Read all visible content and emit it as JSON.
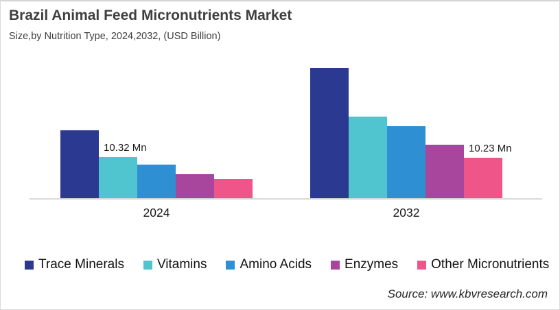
{
  "header": {
    "title": "Brazil Animal Feed Micronutrients Market",
    "subtitle": "Size,by Nutrition Type, 2024,2032, (USD Billion)"
  },
  "source": "Source: www.kbvresearch.com",
  "colors": {
    "trace_minerals": "#2b3990",
    "vitamins": "#50c4cf",
    "amino_acids": "#2e90d2",
    "enzymes": "#a8459d",
    "other_micronutrients": "#f0558a",
    "axis": "#d9d9d9",
    "title_text": "#3f3f3f"
  },
  "chart_data": {
    "type": "bar",
    "title": "Brazil Animal Feed Micronutrients Market",
    "subtitle": "Size,by Nutrition Type, 2024,2032, (USD Billion)",
    "categories": [
      "2024",
      "2032"
    ],
    "series": [
      {
        "name": "Trace Minerals",
        "color": "#2b3990",
        "values": [
          16.9,
          32.4
        ]
      },
      {
        "name": "Vitamins",
        "color": "#50c4cf",
        "values": [
          10.32,
          20.3
        ]
      },
      {
        "name": "Amino Acids",
        "color": "#2e90d2",
        "values": [
          8.5,
          17.9
        ]
      },
      {
        "name": "Enzymes",
        "color": "#a8459d",
        "values": [
          6.1,
          13.4
        ]
      },
      {
        "name": "Other Micronutrients",
        "color": "#f0558a",
        "values": [
          4.9,
          10.23
        ]
      }
    ],
    "annotations": [
      {
        "text": "10.32 Mn",
        "category": "2024",
        "series": "Vitamins"
      },
      {
        "text": "10.23 Mn",
        "category": "2032",
        "series": "Other Micronutrients"
      }
    ],
    "unit_label": "Mn",
    "xlabel": "",
    "ylabel": "",
    "ylim": [
      0,
      35
    ],
    "grid": false,
    "y_axis_shown": false,
    "legend_position": "bottom"
  }
}
